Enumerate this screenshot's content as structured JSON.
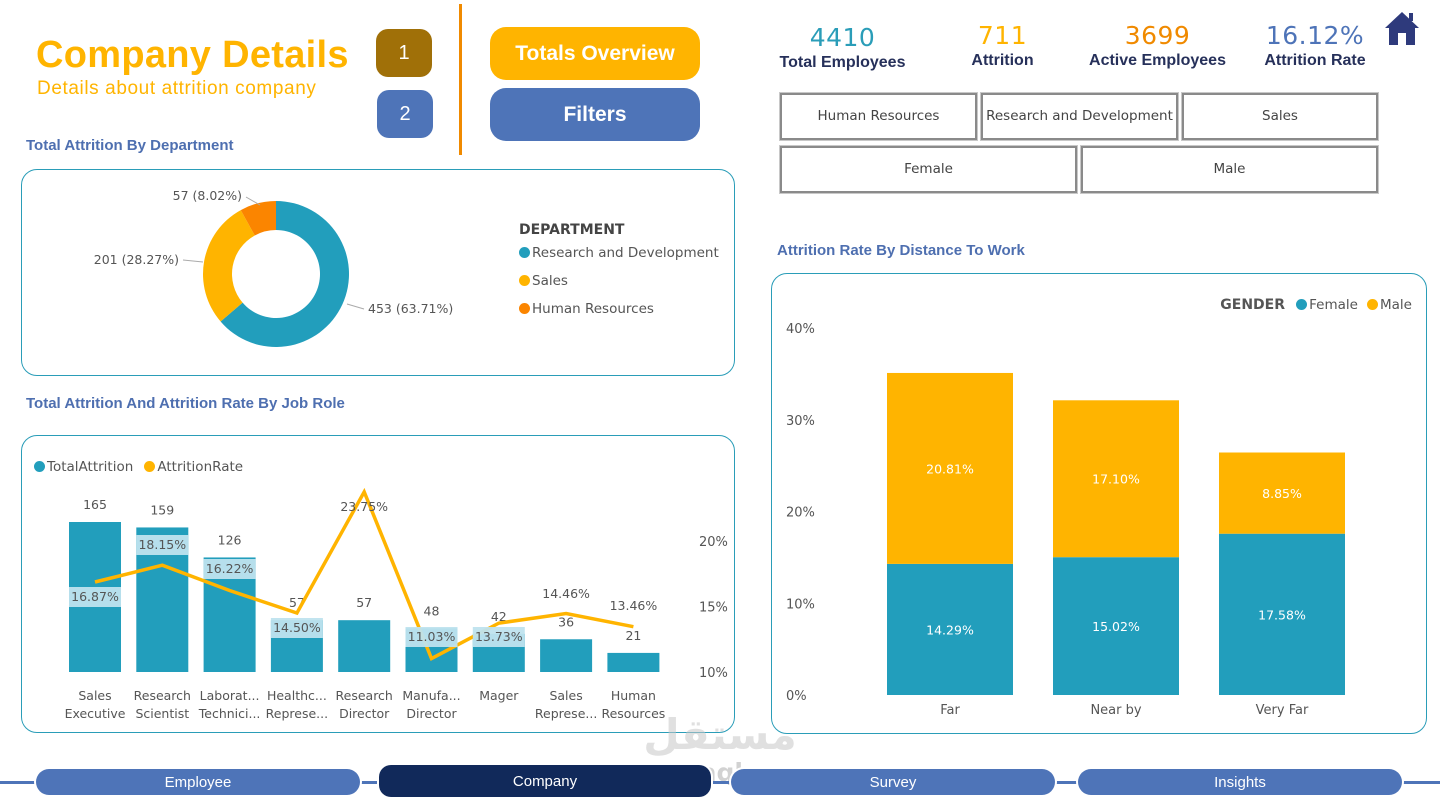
{
  "header": {
    "title": "Company Details",
    "subtitle": "Details about attrition company",
    "page_buttons": [
      "1",
      "2"
    ],
    "totals_overview_label": "Totals Overview",
    "filters_label": "Filters"
  },
  "kpis": [
    {
      "value": "4410",
      "label": "Total Employees",
      "color": "#2A9DB8"
    },
    {
      "value": "711",
      "label": "Attrition",
      "color": "#FFB400"
    },
    {
      "value": "3699",
      "label": "Active Employees",
      "color": "#F08A00"
    },
    {
      "value": "16.12%",
      "label": "Attrition Rate",
      "color": "#4E74B8"
    }
  ],
  "home_icon": "home-icon",
  "slicers": {
    "department": [
      "Human Resources",
      "Research and Development",
      "Sales"
    ],
    "gender": [
      "Female",
      "Male"
    ]
  },
  "colors": {
    "teal": "#229EBC",
    "yellow": "#FFB400",
    "orange": "#FB8500",
    "blue": "#4E74B8",
    "navy": "#11295A",
    "title_blue": "#4E6FB0"
  },
  "department_chart": {
    "title": "Total Attrition By Department",
    "legend_title": "DEPARTMENT"
  },
  "jobrole_chart": {
    "title": "Total Attrition And Attrition Rate By Job Role",
    "legend": [
      "TotalAttrition",
      "AttritionRate"
    ]
  },
  "distance_chart": {
    "title": "Attrition Rate By Distance To Work",
    "legend_title": "GENDER",
    "legend": [
      "Female",
      "Male"
    ]
  },
  "chart_data": [
    {
      "type": "pie",
      "variant": "donut",
      "title": "Total Attrition By Department",
      "legend_title": "DEPARTMENT",
      "legend_position": "right",
      "categories": [
        "Research and Development",
        "Sales",
        "Human Resources"
      ],
      "values": [
        453,
        201,
        57
      ],
      "percents": [
        63.71,
        28.27,
        8.02
      ],
      "labels": [
        "453 (63.71%)",
        "201 (28.27%)",
        "57 (8.02%)"
      ],
      "colors": [
        "#229EBC",
        "#FFB400",
        "#FB8500"
      ]
    },
    {
      "type": "bar",
      "combo": "bar+line",
      "title": "Total Attrition And Attrition Rate By Job Role",
      "legend_position": "top-left",
      "categories": [
        [
          "Sales",
          "Executive"
        ],
        [
          "Research",
          "Scientist"
        ],
        [
          "Laborat...",
          "Technici..."
        ],
        [
          "Healthc...",
          "Represe..."
        ],
        [
          "Research",
          "Director"
        ],
        [
          "Manufa...",
          "Director"
        ],
        [
          "Mager",
          ""
        ],
        [
          "Sales",
          "Represe..."
        ],
        [
          "Human",
          "Resources"
        ]
      ],
      "series": [
        {
          "name": "TotalAttrition",
          "type": "bar",
          "values": [
            165,
            159,
            126,
            57,
            57,
            48,
            42,
            36,
            21
          ],
          "color": "#229EBC"
        },
        {
          "name": "AttritionRate",
          "type": "line",
          "values": [
            16.87,
            18.15,
            16.22,
            14.5,
            23.75,
            11.03,
            13.73,
            14.46,
            13.46
          ],
          "labels": [
            "16.87%",
            "18.15%",
            "16.22%",
            "14.50%",
            "23.75%",
            "11.03%",
            "13.73%",
            "14.46%",
            "13.46%"
          ],
          "color": "#FFB400"
        }
      ],
      "y2_ticks": [
        "10%",
        "15%",
        "20%"
      ],
      "y2lim": [
        10,
        25
      ],
      "ylim": [
        0,
        180
      ]
    },
    {
      "type": "bar",
      "stacked": true,
      "title": "Attrition Rate By Distance To Work",
      "legend_title": "GENDER",
      "legend_position": "top-right",
      "categories": [
        "Far",
        "Near by",
        "Very Far"
      ],
      "series": [
        {
          "name": "Female",
          "values": [
            14.29,
            15.02,
            17.58
          ],
          "labels": [
            "14.29%",
            "15.02%",
            "17.58%"
          ],
          "color": "#229EBC"
        },
        {
          "name": "Male",
          "values": [
            20.81,
            17.1,
            8.85
          ],
          "labels": [
            "20.81%",
            "17.10%",
            "8.85%"
          ],
          "color": "#FFB400"
        }
      ],
      "y_ticks": [
        "0%",
        "10%",
        "20%",
        "30%",
        "40%"
      ],
      "ylim": [
        0,
        40
      ]
    }
  ],
  "bottom_nav": {
    "tabs": [
      "Employee",
      "Company",
      "Survey",
      "Insights"
    ],
    "active": "Company"
  },
  "watermark": {
    "text_top": "مستقل",
    "text_bottom": "mostaql.com"
  }
}
